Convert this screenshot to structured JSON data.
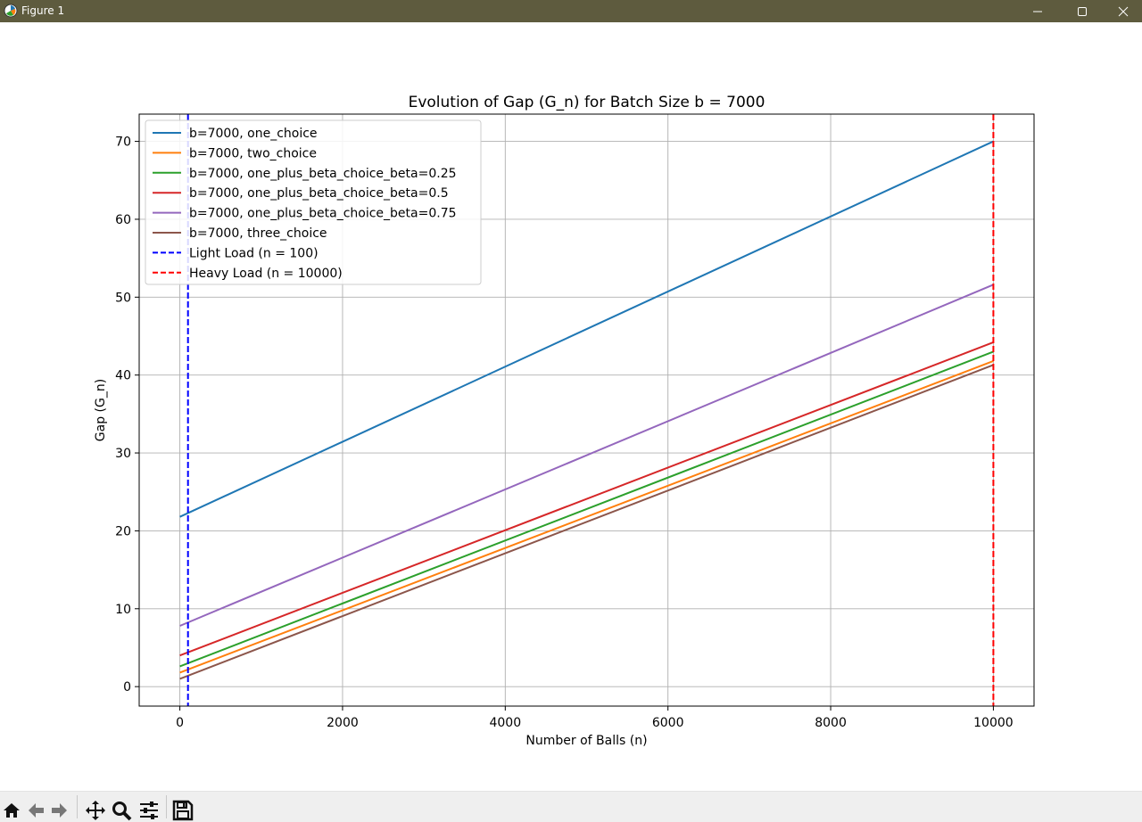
{
  "window": {
    "title": "Figure 1",
    "icons": [
      "matplotlib-logo-icon",
      "minimize-icon",
      "maximize-icon",
      "close-icon"
    ]
  },
  "toolbar": {
    "tools": [
      "home-icon",
      "back-arrow-icon",
      "forward-arrow-icon",
      "pan-icon",
      "zoom-icon",
      "subplots-config-icon",
      "save-icon"
    ]
  },
  "chart_data": {
    "type": "line",
    "title": "Evolution of Gap (G_n) for Batch Size b = 7000",
    "xlabel": "Number of Balls (n)",
    "ylabel": "Gap (G_n)",
    "xlim": [
      -500,
      10500
    ],
    "ylim": [
      -2.5,
      73.5
    ],
    "xticks": [
      0,
      2000,
      4000,
      6000,
      8000,
      10000
    ],
    "yticks": [
      0,
      10,
      20,
      30,
      40,
      50,
      60,
      70
    ],
    "grid": true,
    "legend_position": "upper-left",
    "series": [
      {
        "name": "b=7000, one_choice",
        "color": "#1f77b4",
        "x": [
          0,
          10000
        ],
        "y": [
          21.8,
          70.0
        ]
      },
      {
        "name": "b=7000, two_choice",
        "color": "#ff7f0e",
        "x": [
          0,
          10000
        ],
        "y": [
          1.8,
          41.8
        ]
      },
      {
        "name": "b=7000, one_plus_beta_choice_beta=0.25",
        "color": "#2ca02c",
        "x": [
          0,
          10000
        ],
        "y": [
          2.6,
          43.0
        ]
      },
      {
        "name": "b=7000, one_plus_beta_choice_beta=0.5",
        "color": "#d62728",
        "x": [
          0,
          10000
        ],
        "y": [
          4.0,
          44.2
        ]
      },
      {
        "name": "b=7000, one_plus_beta_choice_beta=0.75",
        "color": "#9467bd",
        "x": [
          0,
          10000
        ],
        "y": [
          7.8,
          51.6
        ]
      },
      {
        "name": "b=7000, three_choice",
        "color": "#8c564b",
        "x": [
          0,
          10000
        ],
        "y": [
          1.0,
          41.3
        ]
      }
    ],
    "vlines": [
      {
        "name": "Light Load (n = 100)",
        "x": 100,
        "color": "#0000ff",
        "style": "dashed"
      },
      {
        "name": "Heavy Load (n = 10000)",
        "x": 10000,
        "color": "#ff0000",
        "style": "dashed"
      }
    ]
  }
}
